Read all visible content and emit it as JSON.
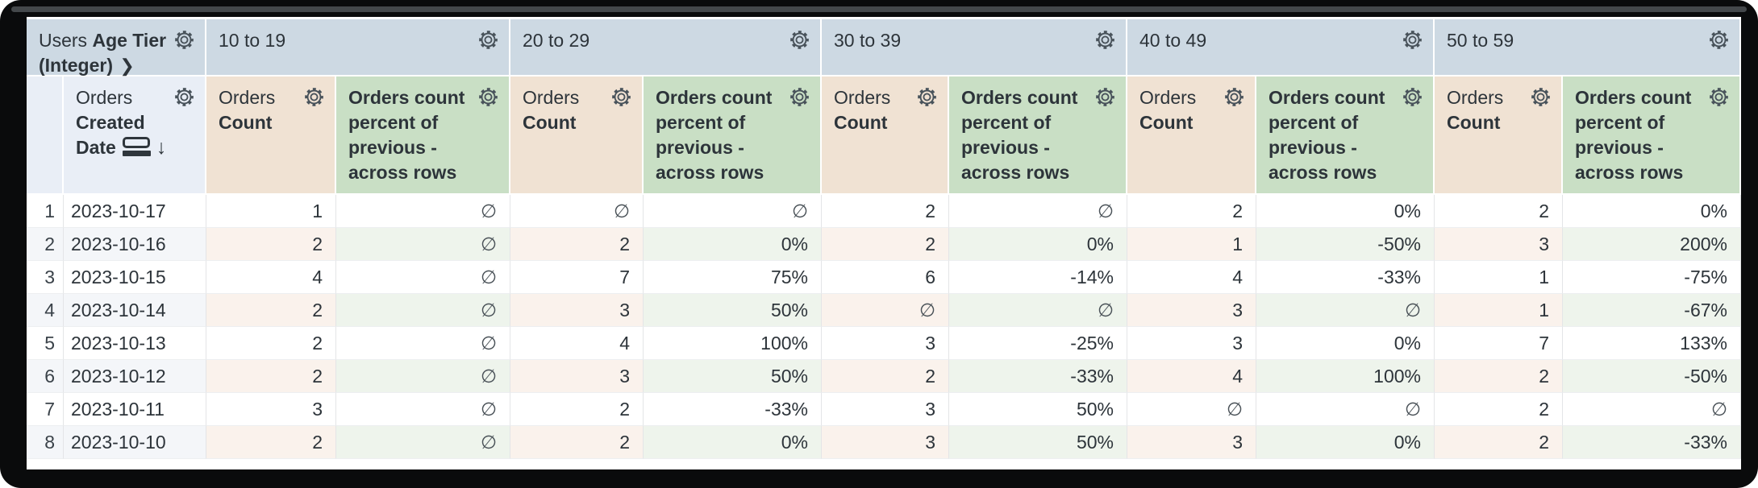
{
  "header": {
    "pivot_title_view": "Users",
    "pivot_title_field": "Age Tier (Integer)",
    "expand_chevron": "❯",
    "pivot_values": [
      "10 to 19",
      "20 to 29",
      "30 to 39",
      "40 to 49",
      "50 to 59"
    ],
    "row_dimension_view": "Orders",
    "row_dimension_field": "Created Date",
    "sort_arrow": "↓",
    "measure_count_view": "Orders",
    "measure_count_field": "Count",
    "measure_percent_label": "Orders count percent of previous - across rows"
  },
  "body": {
    "null_symbol": "∅",
    "rows": [
      {
        "n": "1",
        "date": "2023-10-17",
        "values": [
          "1",
          "∅",
          "∅",
          "∅",
          "2",
          "∅",
          "2",
          "0%",
          "2",
          "0%"
        ]
      },
      {
        "n": "2",
        "date": "2023-10-16",
        "values": [
          "2",
          "∅",
          "2",
          "0%",
          "2",
          "0%",
          "1",
          "-50%",
          "3",
          "200%"
        ]
      },
      {
        "n": "3",
        "date": "2023-10-15",
        "values": [
          "4",
          "∅",
          "7",
          "75%",
          "6",
          "-14%",
          "4",
          "-33%",
          "1",
          "-75%"
        ]
      },
      {
        "n": "4",
        "date": "2023-10-14",
        "values": [
          "2",
          "∅",
          "3",
          "50%",
          "∅",
          "∅",
          "3",
          "∅",
          "1",
          "-67%"
        ]
      },
      {
        "n": "5",
        "date": "2023-10-13",
        "values": [
          "2",
          "∅",
          "4",
          "100%",
          "3",
          "-25%",
          "3",
          "0%",
          "7",
          "133%"
        ]
      },
      {
        "n": "6",
        "date": "2023-10-12",
        "values": [
          "2",
          "∅",
          "3",
          "50%",
          "2",
          "-33%",
          "4",
          "100%",
          "2",
          "-50%"
        ]
      },
      {
        "n": "7",
        "date": "2023-10-11",
        "values": [
          "3",
          "∅",
          "2",
          "-33%",
          "3",
          "50%",
          "∅",
          "∅",
          "2",
          "∅"
        ]
      },
      {
        "n": "8",
        "date": "2023-10-10",
        "values": [
          "2",
          "∅",
          "2",
          "0%",
          "3",
          "50%",
          "3",
          "0%",
          "2",
          "-33%"
        ]
      }
    ]
  },
  "icons": {
    "header_menu": "gear-icon",
    "date_group": "date-group-icon",
    "sort": "arrow-down-icon",
    "pivot_expand": "chevron-right-icon"
  },
  "colors": {
    "pivot_header_bg": "#cdd9e3",
    "dimension_header_bg": "#e9eef6",
    "count_header_bg": "#f0e2d3",
    "percent_header_bg": "#c9dfc5",
    "even_row_dimension": "#f4f6f9",
    "even_row_count": "#faf2ec",
    "even_row_percent": "#eef4ec",
    "text": "#2d343a",
    "frame": "#0a0b0c"
  }
}
